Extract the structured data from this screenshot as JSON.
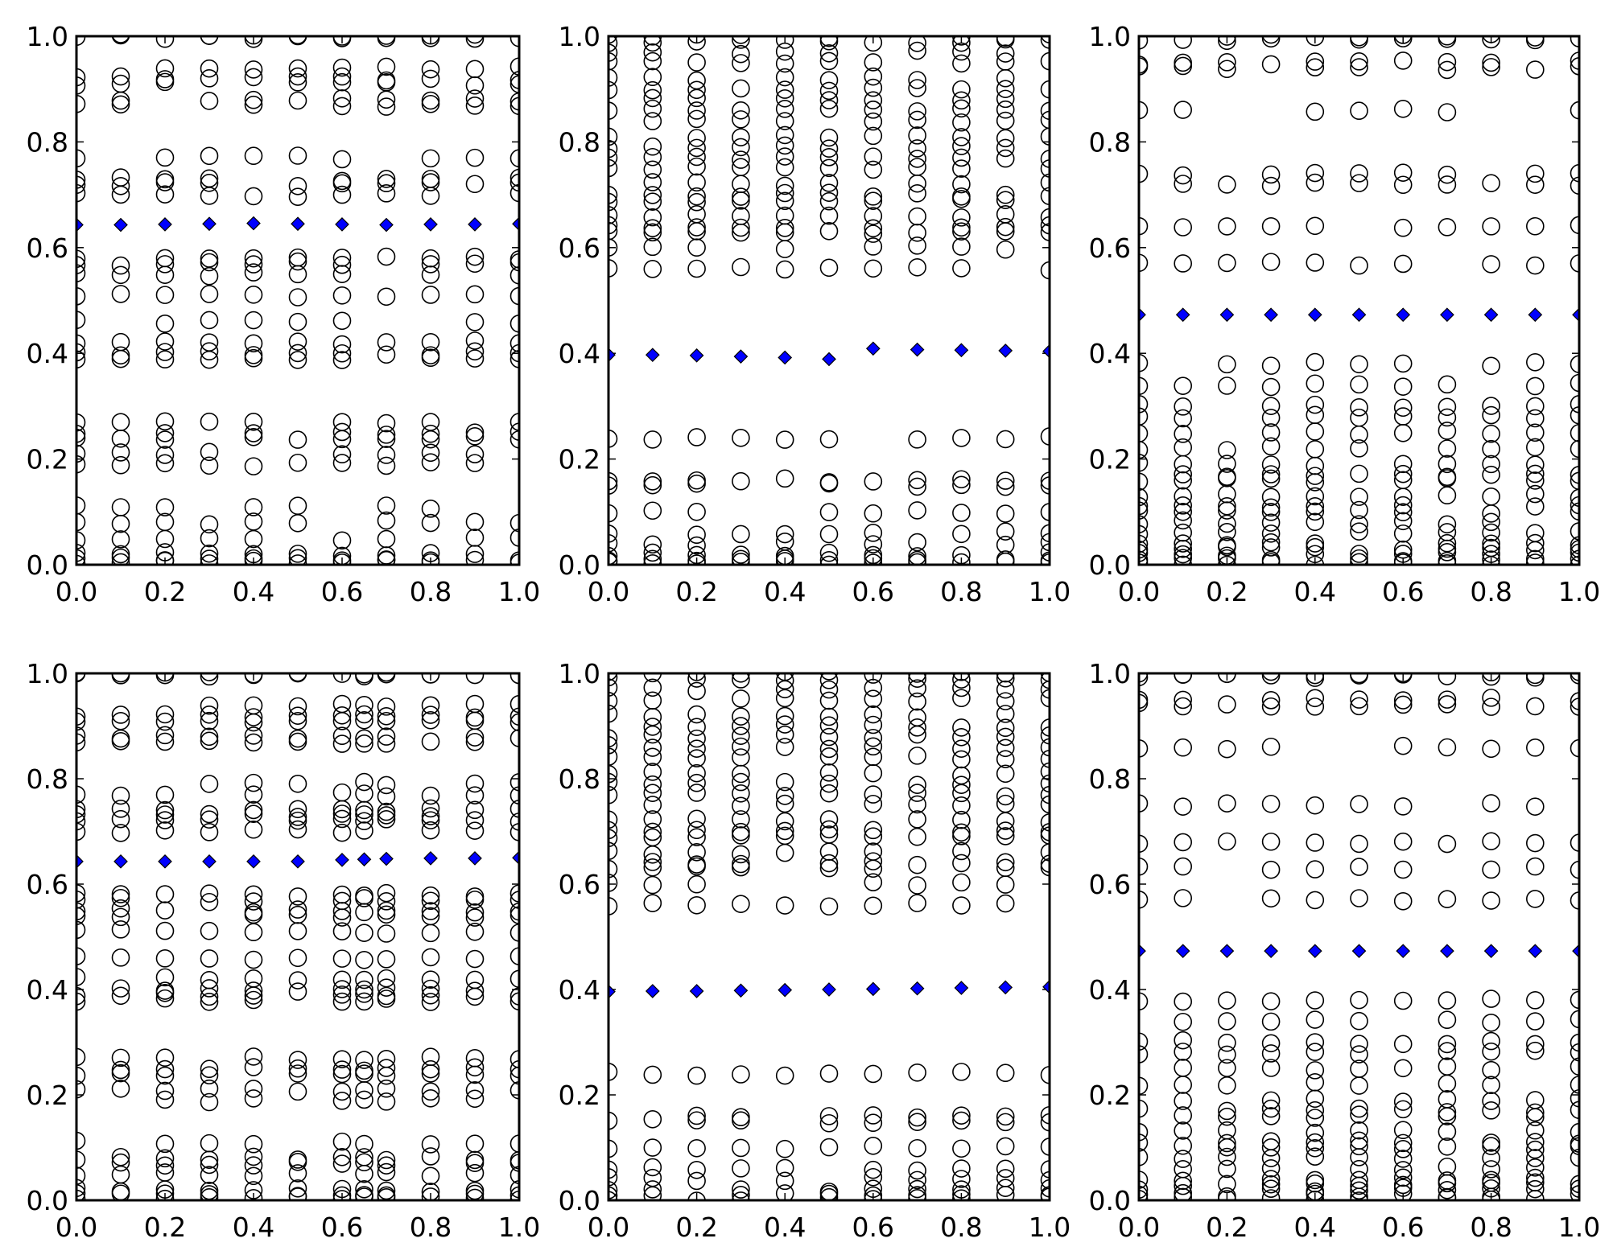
{
  "chart_data": [
    {
      "type": "scatter",
      "panel": "top-left",
      "xlim": [
        0,
        1
      ],
      "ylim": [
        0,
        1
      ],
      "xticks": [
        "0.0",
        "0.2",
        "0.4",
        "0.6",
        "0.8",
        "1.0"
      ],
      "yticks": [
        "0.0",
        "0.2",
        "0.4",
        "0.6",
        "0.8",
        "1.0"
      ],
      "x": [
        0.0,
        0.1,
        0.2,
        0.3,
        0.4,
        0.5,
        0.6,
        0.7,
        0.8,
        0.9,
        1.0
      ],
      "points_y": [
        1.0,
        0.998,
        0.94,
        0.92,
        0.91,
        0.88,
        0.87,
        0.77,
        0.73,
        0.72,
        0.7,
        0.58,
        0.57,
        0.55,
        0.51,
        0.46,
        0.42,
        0.4,
        0.39,
        0.27,
        0.25,
        0.24,
        0.21,
        0.19,
        0.11,
        0.08,
        0.05,
        0.02,
        0.01,
        0.005
      ],
      "mean_markers": [
        0.643,
        0.643,
        0.644,
        0.645,
        0.646,
        0.645,
        0.644,
        0.643,
        0.644,
        0.644,
        0.645
      ],
      "grid": false,
      "legend": "none"
    },
    {
      "type": "scatter",
      "panel": "top-middle",
      "xlim": [
        0,
        1
      ],
      "ylim": [
        0,
        1
      ],
      "xticks": [
        "0.0",
        "0.2",
        "0.4",
        "0.6",
        "0.8",
        "1.0"
      ],
      "yticks": [
        "0.0",
        "0.2",
        "0.4",
        "0.6",
        "0.8",
        "1.0"
      ],
      "x": [
        0.0,
        0.1,
        0.2,
        0.3,
        0.4,
        0.5,
        0.6,
        0.7,
        0.8,
        0.9,
        1.0
      ],
      "points_y": [
        1.0,
        0.99,
        0.97,
        0.95,
        0.92,
        0.9,
        0.88,
        0.86,
        0.84,
        0.81,
        0.79,
        0.77,
        0.75,
        0.72,
        0.7,
        0.69,
        0.66,
        0.64,
        0.63,
        0.6,
        0.56,
        0.24,
        0.16,
        0.15,
        0.1,
        0.06,
        0.04,
        0.02,
        0.01,
        0.003
      ],
      "mean_markers": [
        0.397,
        0.397,
        0.396,
        0.394,
        0.392,
        0.389,
        0.409,
        0.407,
        0.406,
        0.405,
        0.404
      ],
      "grid": false,
      "legend": "none"
    },
    {
      "type": "scatter",
      "panel": "top-right",
      "xlim": [
        0,
        1
      ],
      "ylim": [
        0,
        1
      ],
      "xticks": [
        "0.0",
        "0.2",
        "0.4",
        "0.6",
        "0.8",
        "1.0"
      ],
      "yticks": [
        "0.0",
        "0.2",
        "0.4",
        "0.6",
        "0.8",
        "1.0"
      ],
      "x": [
        0.0,
        0.1,
        0.2,
        0.3,
        0.4,
        0.5,
        0.6,
        0.7,
        0.8,
        0.9,
        1.0
      ],
      "points_y": [
        1.0,
        0.995,
        0.95,
        0.94,
        0.86,
        0.74,
        0.72,
        0.64,
        0.57,
        0.38,
        0.34,
        0.3,
        0.28,
        0.25,
        0.22,
        0.19,
        0.17,
        0.16,
        0.13,
        0.11,
        0.1,
        0.08,
        0.06,
        0.04,
        0.03,
        0.02,
        0.01,
        0.003
      ],
      "mean_markers": [
        0.473,
        0.473,
        0.473,
        0.473,
        0.473,
        0.473,
        0.473,
        0.473,
        0.473,
        0.473,
        0.473
      ],
      "grid": false,
      "legend": "none"
    },
    {
      "type": "scatter",
      "panel": "bottom-left",
      "xlim": [
        0,
        1
      ],
      "ylim": [
        0,
        1
      ],
      "xticks": [
        "0.0",
        "0.2",
        "0.4",
        "0.6",
        "0.8",
        "1.0"
      ],
      "yticks": [
        "0.0",
        "0.2",
        "0.4",
        "0.6",
        "0.8",
        "1.0"
      ],
      "x": [
        0.0,
        0.1,
        0.2,
        0.3,
        0.4,
        0.5,
        0.6,
        0.65,
        0.7,
        0.8,
        0.9,
        1.0
      ],
      "points_y": [
        1.0,
        0.998,
        0.94,
        0.92,
        0.91,
        0.88,
        0.87,
        0.79,
        0.77,
        0.74,
        0.73,
        0.72,
        0.7,
        0.58,
        0.57,
        0.55,
        0.54,
        0.51,
        0.46,
        0.42,
        0.4,
        0.39,
        0.38,
        0.27,
        0.25,
        0.24,
        0.21,
        0.19,
        0.11,
        0.08,
        0.07,
        0.05,
        0.02,
        0.01,
        0.005
      ],
      "mean_markers": [
        0.643,
        0.643,
        0.643,
        0.643,
        0.643,
        0.643,
        0.646,
        0.647,
        0.648,
        0.649,
        0.649,
        0.65
      ],
      "grid": false,
      "legend": "none"
    },
    {
      "type": "scatter",
      "panel": "bottom-middle",
      "xlim": [
        0,
        1
      ],
      "ylim": [
        0,
        1
      ],
      "xticks": [
        "0.0",
        "0.2",
        "0.4",
        "0.6",
        "0.8",
        "1.0"
      ],
      "yticks": [
        "0.0",
        "0.2",
        "0.4",
        "0.6",
        "0.8",
        "1.0"
      ],
      "x": [
        0.0,
        0.1,
        0.2,
        0.3,
        0.4,
        0.5,
        0.6,
        0.7,
        0.8,
        0.9,
        1.0
      ],
      "points_y": [
        1.0,
        0.99,
        0.97,
        0.95,
        0.92,
        0.9,
        0.88,
        0.86,
        0.84,
        0.81,
        0.79,
        0.77,
        0.75,
        0.72,
        0.7,
        0.69,
        0.66,
        0.64,
        0.63,
        0.6,
        0.56,
        0.24,
        0.16,
        0.15,
        0.1,
        0.06,
        0.04,
        0.02,
        0.01,
        0.003
      ],
      "mean_markers": [
        0.396,
        0.397,
        0.397,
        0.398,
        0.399,
        0.4,
        0.401,
        0.402,
        0.403,
        0.404,
        0.405
      ],
      "grid": false,
      "legend": "none"
    },
    {
      "type": "scatter",
      "panel": "bottom-right",
      "xlim": [
        0,
        1
      ],
      "ylim": [
        0,
        1
      ],
      "xticks": [
        "0.0",
        "0.2",
        "0.4",
        "0.6",
        "0.8",
        "1.0"
      ],
      "yticks": [
        "0.0",
        "0.2",
        "0.4",
        "0.6",
        "0.8",
        "1.0"
      ],
      "x": [
        0.0,
        0.1,
        0.2,
        0.3,
        0.4,
        0.5,
        0.6,
        0.7,
        0.8,
        0.9,
        1.0
      ],
      "points_y": [
        1.0,
        0.995,
        0.95,
        0.94,
        0.86,
        0.75,
        0.68,
        0.63,
        0.57,
        0.38,
        0.34,
        0.3,
        0.28,
        0.25,
        0.22,
        0.19,
        0.17,
        0.16,
        0.13,
        0.11,
        0.1,
        0.08,
        0.06,
        0.04,
        0.03,
        0.02,
        0.01,
        0.003
      ],
      "mean_markers": [
        0.473,
        0.473,
        0.473,
        0.473,
        0.473,
        0.473,
        0.473,
        0.473,
        0.473,
        0.473,
        0.473
      ],
      "grid": false,
      "legend": "none"
    }
  ],
  "colors": {
    "marker_edge": "#000000",
    "mean_marker_fill": "#0000ff",
    "background": "#ffffff"
  },
  "icons": {
    "point_marker": "open-circle-icon",
    "mean_marker": "blue-diamond-icon"
  }
}
